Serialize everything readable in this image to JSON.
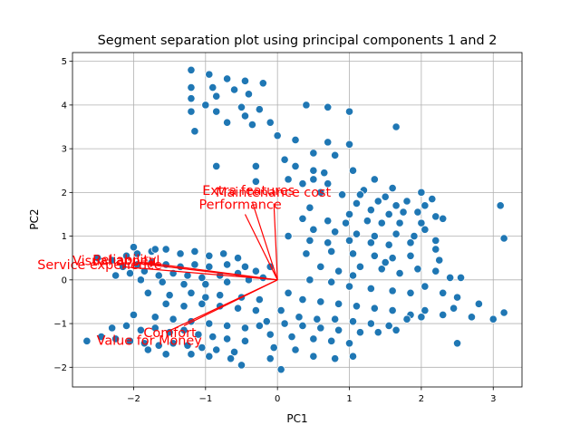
{
  "chart_data": {
    "type": "scatter",
    "title": "Segment separation plot using principal components 1 and 2",
    "xlabel": "PC1",
    "ylabel": "PC2",
    "xlim": [
      -2.85,
      3.4
    ],
    "ylim": [
      -2.45,
      5.2
    ],
    "xticks": [
      -2,
      -1,
      0,
      1,
      2,
      3
    ],
    "yticks": [
      -2,
      -1,
      0,
      1,
      2,
      3,
      4,
      5
    ],
    "grid": true,
    "point_color": "#1f77b4",
    "arrow_color": "#ff0000",
    "points": [
      [
        -1.2,
        4.8
      ],
      [
        -0.95,
        4.7
      ],
      [
        -0.7,
        4.6
      ],
      [
        -0.45,
        4.55
      ],
      [
        -0.2,
        4.5
      ],
      [
        -1.2,
        4.4
      ],
      [
        -0.9,
        4.4
      ],
      [
        -0.6,
        4.35
      ],
      [
        -1.2,
        4.15
      ],
      [
        -0.85,
        4.2
      ],
      [
        -0.4,
        4.25
      ],
      [
        -1.0,
        4.0
      ],
      [
        -0.5,
        3.95
      ],
      [
        -0.25,
        3.9
      ],
      [
        -1.2,
        3.85
      ],
      [
        -0.85,
        3.85
      ],
      [
        -0.45,
        3.75
      ],
      [
        -0.1,
        3.6
      ],
      [
        -0.7,
        3.6
      ],
      [
        -0.35,
        3.55
      ],
      [
        -1.15,
        3.4
      ],
      [
        0.0,
        3.3
      ],
      [
        0.4,
        4.0
      ],
      [
        0.7,
        3.95
      ],
      [
        1.0,
        3.85
      ],
      [
        1.65,
        3.5
      ],
      [
        0.25,
        3.2
      ],
      [
        0.7,
        3.15
      ],
      [
        1.0,
        3.1
      ],
      [
        0.5,
        2.9
      ],
      [
        0.8,
        2.85
      ],
      [
        -0.85,
        2.6
      ],
      [
        -0.3,
        2.6
      ],
      [
        0.1,
        2.75
      ],
      [
        0.25,
        2.6
      ],
      [
        0.5,
        2.5
      ],
      [
        0.65,
        2.45
      ],
      [
        1.05,
        2.5
      ],
      [
        0.5,
        2.3
      ],
      [
        -0.3,
        2.25
      ],
      [
        0.15,
        2.3
      ],
      [
        0.35,
        2.2
      ],
      [
        0.7,
        2.2
      ],
      [
        1.35,
        2.3
      ],
      [
        1.6,
        2.1
      ],
      [
        2.0,
        2.0
      ],
      [
        2.15,
        1.85
      ],
      [
        1.2,
        2.05
      ],
      [
        0.6,
        2.0
      ],
      [
        0.9,
        1.95
      ],
      [
        1.15,
        1.95
      ],
      [
        1.5,
        1.9
      ],
      [
        1.8,
        1.8
      ],
      [
        1.4,
        1.8
      ],
      [
        1.65,
        1.7
      ],
      [
        2.05,
        1.7
      ],
      [
        1.1,
        1.75
      ],
      [
        1.3,
        1.6
      ],
      [
        1.55,
        1.5
      ],
      [
        1.75,
        1.55
      ],
      [
        1.95,
        1.55
      ],
      [
        2.2,
        1.45
      ],
      [
        1.0,
        1.5
      ],
      [
        1.25,
        1.35
      ],
      [
        1.45,
        1.3
      ],
      [
        1.7,
        1.3
      ],
      [
        2.0,
        1.3
      ],
      [
        2.3,
        1.4
      ],
      [
        0.35,
        1.4
      ],
      [
        0.7,
        1.35
      ],
      [
        0.95,
        1.3
      ],
      [
        0.5,
        1.15
      ],
      [
        0.8,
        1.1
      ],
      [
        1.1,
        1.05
      ],
      [
        1.35,
        1.0
      ],
      [
        1.65,
        1.05
      ],
      [
        1.9,
        1.0
      ],
      [
        0.15,
        1.0
      ],
      [
        0.45,
        0.9
      ],
      [
        0.7,
        0.85
      ],
      [
        1.0,
        0.9
      ],
      [
        1.3,
        0.85
      ],
      [
        1.55,
        0.8
      ],
      [
        1.85,
        0.85
      ],
      [
        2.05,
        1.15
      ],
      [
        2.2,
        0.9
      ],
      [
        0.4,
        0.6
      ],
      [
        0.75,
        0.65
      ],
      [
        1.05,
        0.6
      ],
      [
        1.35,
        0.55
      ],
      [
        1.6,
        0.5
      ],
      [
        1.85,
        0.55
      ],
      [
        2.2,
        0.7
      ],
      [
        2.25,
        0.45
      ],
      [
        1.15,
        0.3
      ],
      [
        1.45,
        0.25
      ],
      [
        1.7,
        0.15
      ],
      [
        1.95,
        0.25
      ],
      [
        2.2,
        0.2
      ],
      [
        2.4,
        0.05
      ],
      [
        0.6,
        0.3
      ],
      [
        0.85,
        0.2
      ],
      [
        1.05,
        0.1
      ],
      [
        2.55,
        0.05
      ],
      [
        0.45,
        0.0
      ],
      [
        0.75,
        -0.05
      ],
      [
        1.0,
        -0.15
      ],
      [
        1.3,
        -0.2
      ],
      [
        1.6,
        -0.25
      ],
      [
        1.85,
        -0.3
      ],
      [
        2.05,
        -0.15
      ],
      [
        2.3,
        -0.3
      ],
      [
        2.5,
        -0.4
      ],
      [
        2.8,
        -0.55
      ],
      [
        3.1,
        1.7
      ],
      [
        3.15,
        0.95
      ],
      [
        0.15,
        -0.3
      ],
      [
        0.35,
        -0.45
      ],
      [
        0.6,
        -0.5
      ],
      [
        0.85,
        -0.55
      ],
      [
        1.1,
        -0.6
      ],
      [
        1.35,
        -0.65
      ],
      [
        1.6,
        -0.7
      ],
      [
        1.85,
        -0.8
      ],
      [
        2.05,
        -0.7
      ],
      [
        2.3,
        -0.8
      ],
      [
        2.45,
        -0.65
      ],
      [
        2.7,
        -0.85
      ],
      [
        3.0,
        -0.9
      ],
      [
        3.15,
        -0.75
      ],
      [
        0.05,
        -0.7
      ],
      [
        0.3,
        -0.85
      ],
      [
        0.55,
        -0.9
      ],
      [
        0.8,
        -0.9
      ],
      [
        1.05,
        -0.95
      ],
      [
        1.3,
        -1.0
      ],
      [
        1.55,
        -1.05
      ],
      [
        1.8,
        -0.9
      ],
      [
        2.0,
        -0.85
      ],
      [
        -0.15,
        -0.95
      ],
      [
        0.1,
        -1.0
      ],
      [
        0.35,
        -1.05
      ],
      [
        0.6,
        -1.1
      ],
      [
        0.85,
        -1.15
      ],
      [
        1.15,
        -1.2
      ],
      [
        1.4,
        -1.2
      ],
      [
        1.65,
        -1.15
      ],
      [
        2.5,
        -1.45
      ],
      [
        -0.1,
        -1.25
      ],
      [
        0.2,
        -1.3
      ],
      [
        0.5,
        -1.35
      ],
      [
        0.75,
        -1.4
      ],
      [
        1.0,
        -1.45
      ],
      [
        -0.05,
        -1.55
      ],
      [
        0.25,
        -1.6
      ],
      [
        0.5,
        -1.75
      ],
      [
        0.8,
        -1.8
      ],
      [
        1.05,
        -1.75
      ],
      [
        0.05,
        -2.05
      ],
      [
        -0.1,
        -1.8
      ],
      [
        -2.65,
        -1.4
      ],
      [
        -2.45,
        -1.3
      ],
      [
        -2.25,
        -1.35
      ],
      [
        -2.05,
        -1.4
      ],
      [
        -1.85,
        -1.45
      ],
      [
        -1.65,
        -1.5
      ],
      [
        -1.45,
        -1.45
      ],
      [
        -1.25,
        -1.5
      ],
      [
        -1.05,
        -1.55
      ],
      [
        -0.85,
        -1.6
      ],
      [
        -0.6,
        -1.65
      ],
      [
        -0.5,
        -1.95
      ],
      [
        -2.3,
        -1.1
      ],
      [
        -2.1,
        -1.05
      ],
      [
        -1.9,
        -1.15
      ],
      [
        -1.7,
        -1.1
      ],
      [
        -1.5,
        -1.2
      ],
      [
        -1.3,
        -1.15
      ],
      [
        -1.1,
        -1.25
      ],
      [
        -0.9,
        -1.3
      ],
      [
        -0.7,
        -1.35
      ],
      [
        -0.45,
        -1.4
      ],
      [
        -1.8,
        -1.6
      ],
      [
        -1.55,
        -1.7
      ],
      [
        -1.2,
        -1.7
      ],
      [
        -0.95,
        -1.75
      ],
      [
        -0.65,
        -1.8
      ],
      [
        -2.0,
        -0.8
      ],
      [
        -1.7,
        -0.85
      ],
      [
        -1.45,
        -0.9
      ],
      [
        -1.2,
        -0.95
      ],
      [
        -0.95,
        -1.0
      ],
      [
        -0.7,
        -1.05
      ],
      [
        -0.45,
        -1.1
      ],
      [
        -0.25,
        -1.05
      ],
      [
        -1.55,
        -0.55
      ],
      [
        -1.3,
        -0.6
      ],
      [
        -1.05,
        -0.55
      ],
      [
        -0.8,
        -0.6
      ],
      [
        -0.55,
        -0.65
      ],
      [
        -0.3,
        -0.7
      ],
      [
        -0.8,
        -0.35
      ],
      [
        -0.5,
        -0.4
      ],
      [
        -0.25,
        -0.45
      ],
      [
        -2.5,
        0.5
      ],
      [
        -2.3,
        0.45
      ],
      [
        -2.1,
        0.55
      ],
      [
        -1.95,
        0.6
      ],
      [
        -1.75,
        0.65
      ],
      [
        -1.55,
        0.7
      ],
      [
        -1.35,
        0.6
      ],
      [
        -1.15,
        0.65
      ],
      [
        -0.95,
        0.55
      ],
      [
        -0.75,
        0.6
      ],
      [
        -0.55,
        0.5
      ],
      [
        -2.15,
        0.3
      ],
      [
        -1.95,
        0.35
      ],
      [
        -1.75,
        0.4
      ],
      [
        -1.55,
        0.35
      ],
      [
        -1.35,
        0.3
      ],
      [
        -1.15,
        0.35
      ],
      [
        -0.95,
        0.3
      ],
      [
        -0.7,
        0.35
      ],
      [
        -0.45,
        0.3
      ],
      [
        -2.25,
        0.1
      ],
      [
        -2.05,
        0.15
      ],
      [
        -1.85,
        0.2
      ],
      [
        -1.65,
        0.1
      ],
      [
        -1.45,
        0.15
      ],
      [
        -1.25,
        0.1
      ],
      [
        -1.05,
        0.05
      ],
      [
        -0.8,
        0.1
      ],
      [
        -0.55,
        0.15
      ],
      [
        -0.3,
        0.2
      ],
      [
        -1.9,
        0.0
      ],
      [
        -1.6,
        -0.05
      ],
      [
        -1.3,
        -0.1
      ],
      [
        -1.0,
        -0.1
      ],
      [
        -0.7,
        -0.05
      ],
      [
        -0.4,
        0.0
      ],
      [
        -0.2,
        0.05
      ],
      [
        -2.0,
        0.75
      ],
      [
        -1.7,
        0.7
      ],
      [
        -1.8,
        -0.3
      ],
      [
        -1.5,
        -0.35
      ],
      [
        -1.2,
        -0.3
      ],
      [
        -1.0,
        -0.4
      ],
      [
        -0.1,
        0.3
      ],
      [
        0.45,
        1.65
      ],
      [
        1.5,
        0.4
      ]
    ],
    "arrows": [
      {
        "label": "Extra features",
        "dx": -0.35,
        "dy": 1.78
      },
      {
        "label": "Maintenance cost",
        "dx": -0.05,
        "dy": 1.75
      },
      {
        "label": "Performance",
        "dx": -0.45,
        "dy": 1.5
      },
      {
        "label": "Reliability",
        "dx": -1.85,
        "dy": 0.4
      },
      {
        "label": "Visual appeal",
        "dx": -1.95,
        "dy": 0.38
      },
      {
        "label": "Service experience",
        "dx": -2.15,
        "dy": 0.3
      },
      {
        "label": "Comfort",
        "dx": -1.3,
        "dy": -1.05
      },
      {
        "label": "Value for Money",
        "dx": -1.55,
        "dy": -1.2
      }
    ]
  }
}
